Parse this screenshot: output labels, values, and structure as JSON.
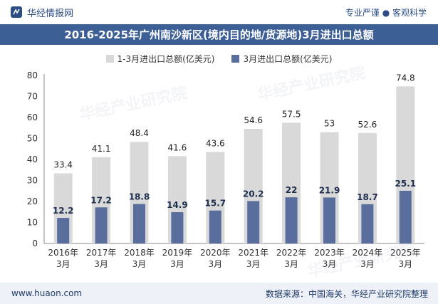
{
  "header": {
    "brand": "华经情报网",
    "tagline": "专业严谨 ● 客观科学"
  },
  "title": "2016-2025年广州南沙新区(境内目的地/货源地)3月进出口总额",
  "legend": {
    "items": [
      {
        "label": "1-3月进出口总额(亿美元)",
        "color": "#d9d9d9"
      },
      {
        "label": "3月进出口总额(亿美元)",
        "color": "#5a6e9e"
      }
    ]
  },
  "chart_data": {
    "type": "bar",
    "categories": [
      [
        "2016年",
        "3月"
      ],
      [
        "2017年",
        "3月"
      ],
      [
        "2018年",
        "3月"
      ],
      [
        "2019年",
        "3月"
      ],
      [
        "2020年",
        "3月"
      ],
      [
        "2021年",
        "3月"
      ],
      [
        "2022年",
        "3月"
      ],
      [
        "2023年",
        "3月"
      ],
      [
        "2024年",
        "3月"
      ],
      [
        "2025年",
        "3月"
      ]
    ],
    "series": [
      {
        "name": "1-3月进出口总额(亿美元)",
        "values": [
          33.4,
          41.1,
          48.4,
          41.6,
          43.6,
          54.6,
          57.5,
          53,
          52.6,
          74.8
        ],
        "labels": [
          "33.4",
          "41.1",
          "48.4",
          "41.6",
          "43.6",
          "54.6",
          "57.5",
          "53",
          "52.6",
          "74.8"
        ],
        "color": "#d9d9d9"
      },
      {
        "name": "3月进出口总额(亿美元)",
        "values": [
          12.2,
          17.2,
          18.8,
          14.9,
          15.7,
          20.2,
          22,
          21.9,
          18.7,
          25.1
        ],
        "labels": [
          "12.2",
          "17.2",
          "18.8",
          "14.9",
          "15.7",
          "20.2",
          "22",
          "21.9",
          "18.7",
          "25.1"
        ],
        "color": "#5a6e9e"
      }
    ],
    "ylim": [
      0,
      80
    ],
    "yticks": [
      "0",
      "10",
      "20",
      "30",
      "40",
      "50",
      "60",
      "70",
      "80"
    ],
    "grid": false
  },
  "watermark": "华经产业研究院",
  "footer": {
    "url": "www.huaon.com",
    "source": "数据来源：中国海关，华经产业研究院整理"
  }
}
